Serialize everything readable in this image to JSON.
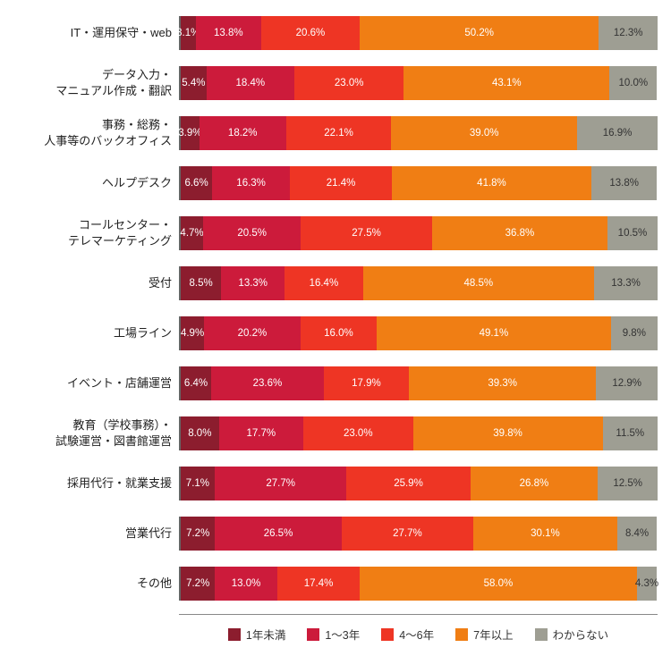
{
  "chart": {
    "type": "stacked-horizontal-bar",
    "xmax": 100,
    "label_fontsize": 13,
    "value_fontsize": 11.5,
    "background_color": "#ffffff",
    "axis_color": "#888888",
    "segments": [
      {
        "key": "s1",
        "label": "1年未満",
        "color": "#8c1d2e",
        "text": "#ffffff"
      },
      {
        "key": "s2",
        "label": "1〜3年",
        "color": "#cc1b3b",
        "text": "#ffffff"
      },
      {
        "key": "s3",
        "label": "4〜6年",
        "color": "#ee3524",
        "text": "#ffffff"
      },
      {
        "key": "s4",
        "label": "7年以上",
        "color": "#f07e14",
        "text": "#ffffff"
      },
      {
        "key": "s5",
        "label": "わからない",
        "color": "#9e9e93",
        "text": "#333333"
      }
    ],
    "rows": [
      {
        "label": "IT・運用保守・web",
        "values": [
          3.1,
          13.8,
          20.6,
          50.2,
          12.3
        ]
      },
      {
        "label": "データ入力・\nマニュアル作成・翻訳",
        "values": [
          5.4,
          18.4,
          23.0,
          43.1,
          10.0
        ]
      },
      {
        "label": "事務・総務・\n人事等のバックオフィス",
        "values": [
          3.9,
          18.2,
          22.1,
          39.0,
          16.9
        ]
      },
      {
        "label": "ヘルプデスク",
        "values": [
          6.6,
          16.3,
          21.4,
          41.8,
          13.8
        ]
      },
      {
        "label": "コールセンター・\nテレマーケティング",
        "values": [
          4.7,
          20.5,
          27.5,
          36.8,
          10.5
        ]
      },
      {
        "label": "受付",
        "values": [
          8.5,
          13.3,
          16.4,
          48.5,
          13.3
        ]
      },
      {
        "label": "工場ライン",
        "values": [
          4.9,
          20.2,
          16.0,
          49.1,
          9.8
        ]
      },
      {
        "label": "イベント・店舗運営",
        "values": [
          6.4,
          23.6,
          17.9,
          39.3,
          12.9
        ]
      },
      {
        "label": "教育（学校事務）・\n試験運営・図書館運営",
        "values": [
          8.0,
          17.7,
          23.0,
          39.8,
          11.5
        ]
      },
      {
        "label": "採用代行・就業支援",
        "values": [
          7.1,
          27.7,
          25.9,
          26.8,
          12.5
        ]
      },
      {
        "label": "営業代行",
        "values": [
          7.2,
          26.5,
          27.7,
          30.1,
          8.4
        ]
      },
      {
        "label": "その他",
        "values": [
          7.2,
          13.0,
          17.4,
          58.0,
          4.3
        ]
      }
    ]
  }
}
